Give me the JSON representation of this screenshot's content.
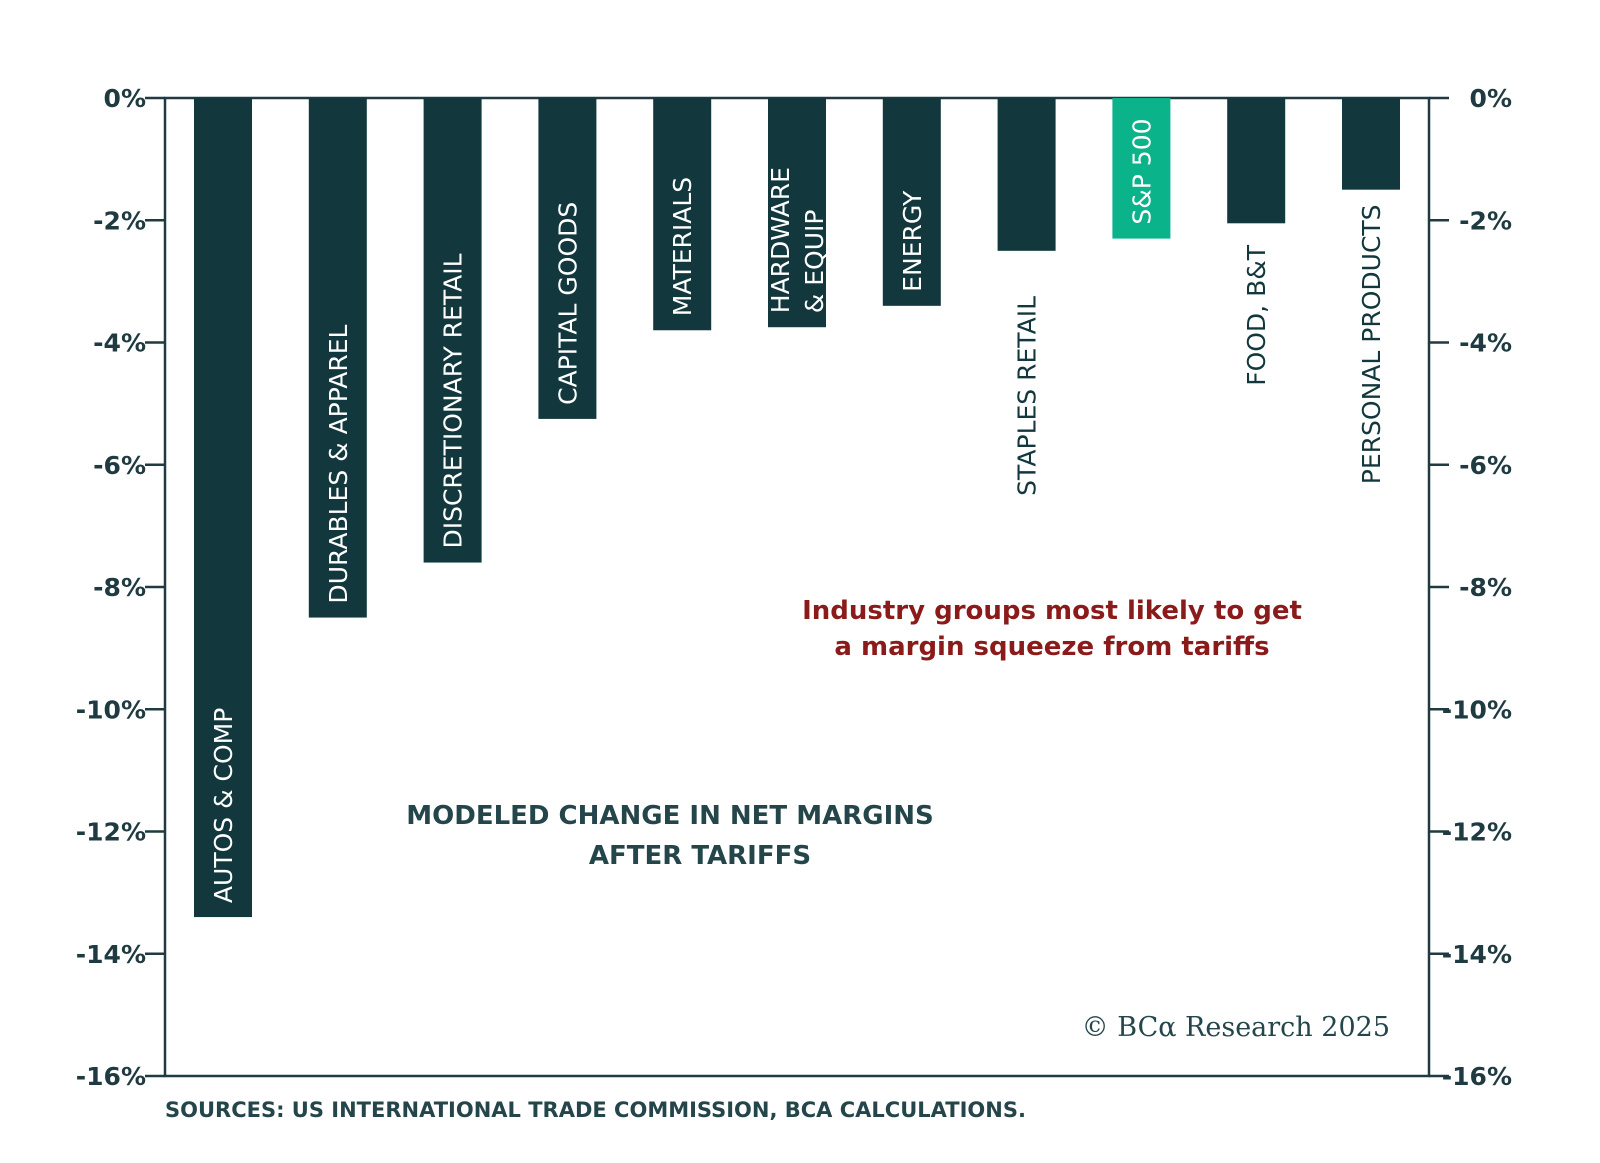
{
  "chart_data": {
    "type": "bar",
    "subtitle_lines": [
      "MODELED CHANGE IN NET MARGINS",
      "AFTER TARIFFS"
    ],
    "annotation_lines": [
      "Industry groups most likely to get",
      "a margin squeeze from tariffs"
    ],
    "ylim": [
      -16,
      0
    ],
    "yticks": [
      0,
      -2,
      -4,
      -6,
      -8,
      -10,
      -12,
      -14,
      -16
    ],
    "ytick_labels": [
      "0%",
      "-2%",
      "-4%",
      "-6%",
      "-8%",
      "-10%",
      "-12%",
      "-14%",
      "-16%"
    ],
    "grid": false,
    "categories": [
      {
        "label": "AUTOS & COMP",
        "lines": [
          "AUTOS & COMP"
        ],
        "value": -13.4,
        "highlight": false
      },
      {
        "label": "DURABLES & APPAREL",
        "lines": [
          "DURABLES & APPAREL"
        ],
        "value": -8.5,
        "highlight": false
      },
      {
        "label": "DISCRETIONARY RETAIL",
        "lines": [
          "DISCRETIONARY RETAIL"
        ],
        "value": -7.6,
        "highlight": false
      },
      {
        "label": "CAPITAL GOODS",
        "lines": [
          "CAPITAL GOODS"
        ],
        "value": -5.25,
        "highlight": false
      },
      {
        "label": "MATERIALS",
        "lines": [
          "MATERIALS"
        ],
        "value": -3.8,
        "highlight": false
      },
      {
        "label": "HARDWARE & EQUIP",
        "lines": [
          "HARDWARE",
          "& EQUIP"
        ],
        "value": -3.75,
        "highlight": false
      },
      {
        "label": "ENERGY",
        "lines": [
          "ENERGY"
        ],
        "value": -3.4,
        "highlight": false
      },
      {
        "label": "STAPLES RETAIL",
        "lines": [
          "STAPLES RETAIL"
        ],
        "value": -2.5,
        "highlight": false
      },
      {
        "label": "S&P 500",
        "lines": [
          "S&P 500"
        ],
        "value": -2.3,
        "highlight": true
      },
      {
        "label": "FOOD, B&T",
        "lines": [
          "FOOD, B&T"
        ],
        "value": -2.05,
        "highlight": false
      },
      {
        "label": "PERSONAL PRODUCTS",
        "lines": [
          "PERSONAL PRODUCTS"
        ],
        "value": -1.5,
        "highlight": false
      }
    ],
    "colors": {
      "bar": "#12383d",
      "highlight": "#0bb38a",
      "axis": "#1f3a40"
    }
  },
  "copyright": "© BCα Research 2025",
  "sources": "SOURCES: US INTERNATIONAL TRADE COMMISSION, BCA CALCULATIONS."
}
